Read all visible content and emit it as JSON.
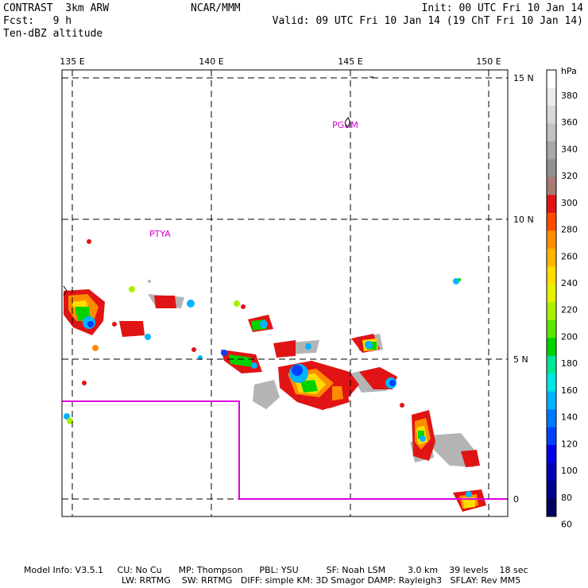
{
  "header": {
    "model": "CONTRAST  3km ARW",
    "fcst": "Fcst:   9 h",
    "field": "Ten-dBZ altitude",
    "org": "NCAR/MMM",
    "init": "Init: 00 UTC Fri 10 Jan 14",
    "valid": "Valid: 09 UTC Fri 10 Jan 14 (19 ChT Fri 10 Jan 14)"
  },
  "map": {
    "lon_labels": [
      "135 E",
      "140 E",
      "145 E",
      "150 E"
    ],
    "lat_labels": [
      "15 N",
      "10 N",
      "5 N",
      "0"
    ],
    "places": [
      "PGUM",
      "PTYA"
    ],
    "colors": {
      "border": "#e000e0",
      "frame": "#000000",
      "grid": "#000000"
    }
  },
  "colorbar": {
    "unit": "hPa",
    "levels": [
      "380",
      "360",
      "340",
      "320",
      "300",
      "280",
      "260",
      "240",
      "220",
      "200",
      "180",
      "160",
      "140",
      "120",
      "100",
      "80",
      "60"
    ],
    "colors": [
      "#ffffff",
      "#ececec",
      "#d8d8d8",
      "#c2c2c2",
      "#a8a8a8",
      "#909090",
      "#a87a72",
      "#e01414",
      "#ff4a00",
      "#ff8c00",
      "#ffb400",
      "#ffdc00",
      "#e6f000",
      "#aaf000",
      "#5ae600",
      "#00d200",
      "#00e696",
      "#00e6e6",
      "#00b4ff",
      "#0078ff",
      "#0040ff",
      "#0000e6",
      "#0000b4",
      "#00008c",
      "#000060"
    ]
  },
  "footer": {
    "line1": "Model Info: V3.5.1     CU: No Cu      MP: Thompson      PBL: YSU          SF: Noah LSM        3.0 km    39 levels    18 sec",
    "line2": "LW: RRTMG    SW: RRTMG   DIFF: simple KM: 3D Smagor DAMP: Rayleigh3   SFLAY: Rev MM5"
  }
}
